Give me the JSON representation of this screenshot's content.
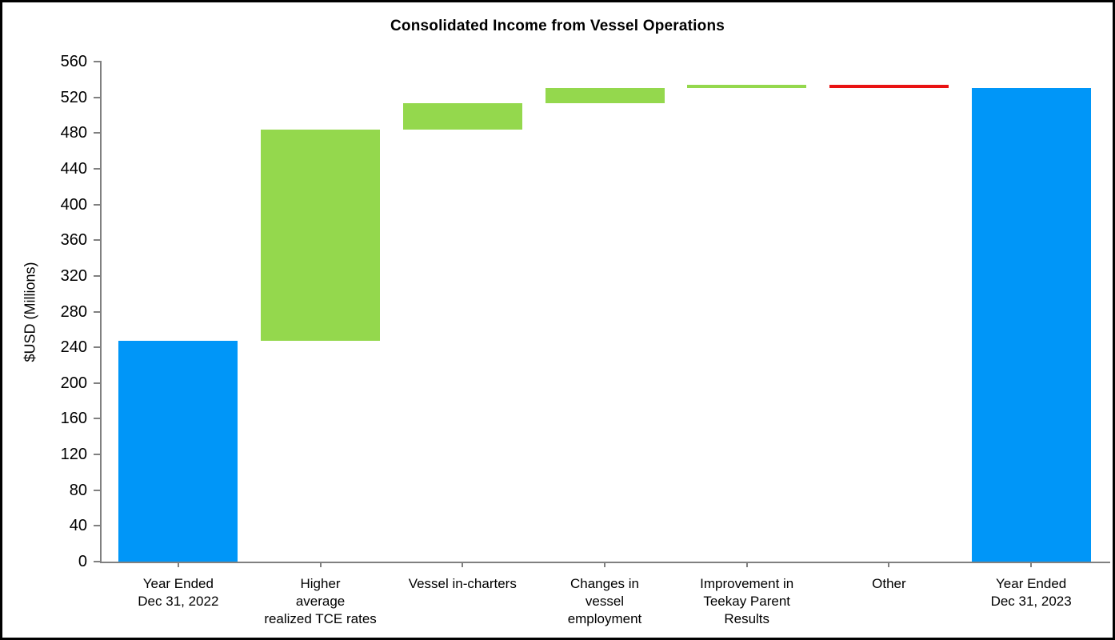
{
  "chart_data": {
    "type": "waterfall",
    "title": "Consolidated Income from Vessel Operations",
    "ylabel": "$USD (Millions)",
    "xlabel": "",
    "ylim": [
      0,
      560
    ],
    "ytick_step": 40,
    "yticks": [
      0,
      40,
      80,
      120,
      160,
      200,
      240,
      280,
      320,
      360,
      400,
      440,
      480,
      520,
      560
    ],
    "grid": false,
    "legend": "none",
    "categories": [
      "Year Ended\nDec 31, 2022",
      "Higher\naverage\nrealized TCE rates",
      "Vessel in-charters",
      "Changes in\nvessel\nemployment",
      "Improvement in\nTeekay Parent\nResults",
      "Other",
      "Year Ended\nDec 31, 2023"
    ],
    "bars": [
      {
        "type": "total",
        "start": 0,
        "end": 247,
        "change": 247
      },
      {
        "type": "increase",
        "start": 247,
        "end": 484,
        "change": 237
      },
      {
        "type": "increase",
        "start": 484,
        "end": 513,
        "change": 29
      },
      {
        "type": "increase",
        "start": 513,
        "end": 530,
        "change": 17
      },
      {
        "type": "increase",
        "start": 530,
        "end": 534,
        "change": 4
      },
      {
        "type": "decrease",
        "start": 534,
        "end": 530,
        "change": -4
      },
      {
        "type": "total",
        "start": 0,
        "end": 530,
        "change": 530
      }
    ],
    "colors": {
      "total": "#0096F8",
      "increase": "#94D84D",
      "decrease": "#E91212",
      "axis": "#808080",
      "text": "#000000",
      "background": "#FFFFFF",
      "border": "#000000"
    }
  }
}
